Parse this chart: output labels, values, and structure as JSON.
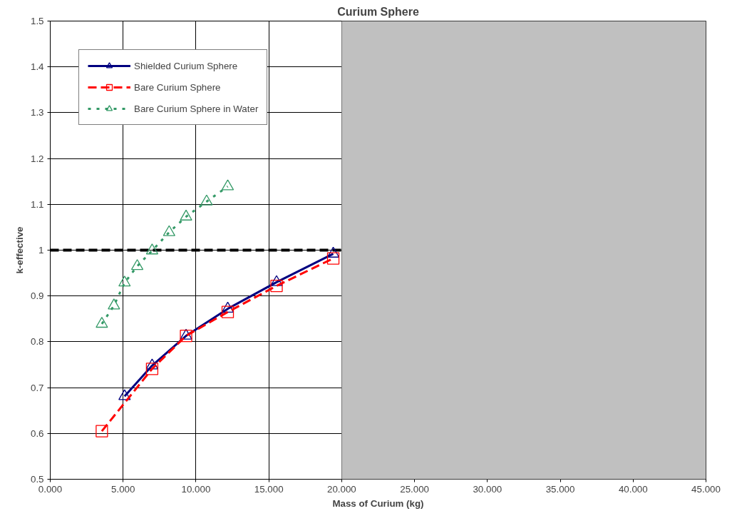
{
  "chart_data": {
    "type": "line",
    "title": "Curium Sphere",
    "xlabel": "Mass of Curium (kg)",
    "ylabel": "k-effective",
    "xlim": [
      0,
      45
    ],
    "ylim": [
      0.5,
      1.5
    ],
    "xticks": [
      {
        "value": 0,
        "label": "0.000"
      },
      {
        "value": 5,
        "label": "5.000"
      },
      {
        "value": 10,
        "label": "10.000"
      },
      {
        "value": 15,
        "label": "15.000"
      },
      {
        "value": 20,
        "label": "20.000"
      },
      {
        "value": 25,
        "label": "25.000"
      },
      {
        "value": 30,
        "label": "30.000"
      },
      {
        "value": 35,
        "label": "35.000"
      },
      {
        "value": 40,
        "label": "40.000"
      },
      {
        "value": 45,
        "label": "45.000"
      }
    ],
    "yticks": [
      0.5,
      0.6,
      0.7,
      0.8,
      0.9,
      1,
      1.1,
      1.2,
      1.3,
      1.4,
      1.5
    ],
    "grid": true,
    "legend": "top left",
    "series": [
      {
        "name": "Shielded Curium Sphere",
        "color": "#000080",
        "marker": "triangle",
        "line_style": "solid",
        "x": [
          5.1,
          6.99,
          9.32,
          12.18,
          15.53,
          19.42
        ],
        "values": [
          0.681,
          0.748,
          0.813,
          0.872,
          0.93,
          0.992
        ]
      },
      {
        "name": "Bare Curium Sphere",
        "color": "#ff0000",
        "marker": "square",
        "line_style": "dashed",
        "x": [
          3.54,
          6.99,
          9.32,
          12.18,
          15.53,
          19.42
        ],
        "values": [
          0.605,
          0.741,
          0.813,
          0.865,
          0.922,
          0.982
        ]
      },
      {
        "name": "Bare Curium Sphere in Water",
        "color": "#339966",
        "marker": "triangle",
        "line_style": "dotted",
        "x": [
          3.54,
          4.37,
          5.1,
          5.97,
          6.99,
          8.16,
          9.32,
          10.73,
          12.18
        ],
        "values": [
          0.839,
          0.879,
          0.929,
          0.965,
          0.999,
          1.039,
          1.073,
          1.106,
          1.139
        ]
      }
    ],
    "ref_lines": [
      {
        "axis": "y",
        "value": 1,
        "color": "#000000",
        "line_style": "dashed"
      }
    ],
    "bands": [
      {
        "axis": "x",
        "from": 20,
        "to": 45,
        "color": "#c0c0c0"
      }
    ]
  }
}
